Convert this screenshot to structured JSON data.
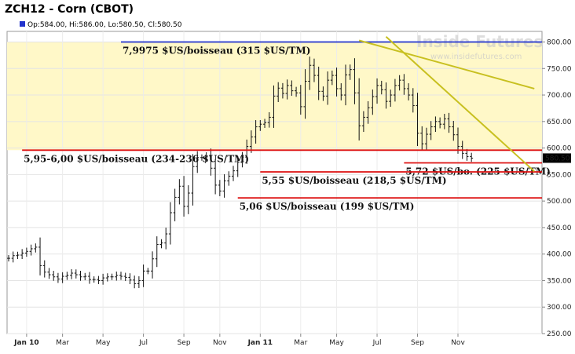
{
  "title": "ZCH12 - Corn (CBOT)",
  "ohlc": "Op:584.00, Hi:586.00, Lo:580.50, Cl:580.50",
  "last_price_label": "580.50",
  "watermark": {
    "brand": "Inside Futures",
    "url": "www.insidefutures.com"
  },
  "colors": {
    "zone": "#fff8c8",
    "blue": "#2233cc",
    "red": "#dd1111",
    "trend": "#c8c020",
    "axis": "#888888"
  },
  "chart_data": {
    "type": "ohlc",
    "ylim": [
      250,
      820
    ],
    "y_ticks": [
      250,
      300,
      350,
      400,
      450,
      500,
      550,
      600,
      650,
      700,
      750,
      800
    ],
    "y_tick_labels": [
      "250.00",
      "300.00",
      "350.00",
      "400.00",
      "450.00",
      "500.00",
      "550.00",
      "600.00",
      "650.00",
      "700.00",
      "750.00",
      "800.00"
    ],
    "x_ticks": [
      {
        "label": "Jan 10",
        "week": 4
      },
      {
        "label": "Mar",
        "week": 12
      },
      {
        "label": "May",
        "week": 21
      },
      {
        "label": "Jul",
        "week": 30
      },
      {
        "label": "Sep",
        "week": 39
      },
      {
        "label": "Nov",
        "week": 47
      },
      {
        "label": "Jan 11",
        "week": 56
      },
      {
        "label": "Mar",
        "week": 65
      },
      {
        "label": "May",
        "week": 73
      },
      {
        "label": "Jul",
        "week": 82
      },
      {
        "label": "Sep",
        "week": 91
      },
      {
        "label": "Nov",
        "week": 100
      }
    ],
    "weekly_close": [
      392,
      397,
      398,
      402,
      405,
      410,
      413,
      378,
      366,
      361,
      357,
      353,
      358,
      360,
      364,
      361,
      357,
      358,
      352,
      352,
      350,
      355,
      357,
      357,
      360,
      358,
      356,
      351,
      344,
      350,
      368,
      368,
      391,
      418,
      421,
      438,
      478,
      507,
      528,
      490,
      515,
      565,
      582,
      582,
      585,
      562,
      530,
      519,
      538,
      547,
      557,
      573,
      583,
      603,
      621,
      640,
      645,
      648,
      658,
      698,
      713,
      703,
      718,
      708,
      704,
      678,
      726,
      756,
      737,
      707,
      698,
      728,
      737,
      712,
      700,
      738,
      748,
      704,
      642,
      658,
      676,
      697,
      718,
      710,
      688,
      700,
      718,
      728,
      712,
      700,
      680,
      628,
      608,
      626,
      640,
      650,
      645,
      655,
      640,
      625,
      603,
      590,
      584,
      581
    ],
    "annotations": [
      {
        "text": "7,9975 $US/boisseau (315 $US/TM)",
        "price": 800,
        "color": "blue",
        "x_start_week": 25
      },
      {
        "text": "5,95-6,00 $US/boisseau (234-236 $US/TM)",
        "price": 596,
        "color": "red",
        "x_start_week": 3
      },
      {
        "text": "5,72 $US/bo. (225 $US/TM)",
        "price": 572,
        "color": "red",
        "x_start_week": 88
      },
      {
        "text": "5,55 $US/boisseau (218,5 $US/TM)",
        "price": 555,
        "color": "red",
        "x_start_week": 56
      },
      {
        "text": "5,06 $US/boisseau (199 $US/TM)",
        "price": 506,
        "color": "red",
        "x_start_week": 51
      }
    ],
    "resistance_zone": [
      596,
      800
    ],
    "trendlines": [
      {
        "from": {
          "week": 78,
          "price": 803
        },
        "to": {
          "week": 117,
          "price": 712
        }
      },
      {
        "from": {
          "week": 84,
          "price": 810
        },
        "to": {
          "week": 117,
          "price": 556
        }
      }
    ]
  }
}
